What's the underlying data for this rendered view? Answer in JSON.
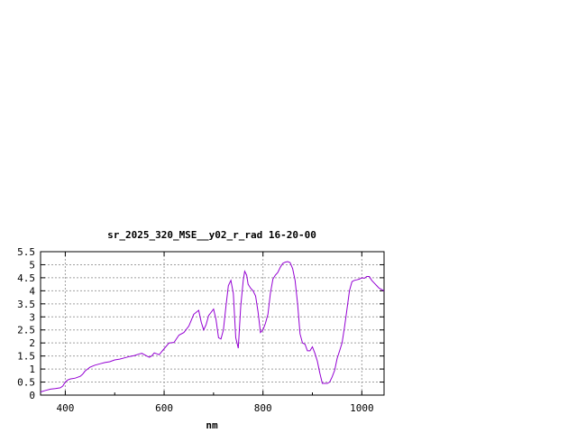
{
  "chart_data": {
    "type": "line",
    "title": "sr_2025_320_MSE__y02_r_rad 16-20-00",
    "xlabel": "nm",
    "ylabel": "",
    "xlim": [
      350,
      1045
    ],
    "ylim": [
      0,
      5.5
    ],
    "x_ticks": [
      400,
      600,
      800,
      1000
    ],
    "y_ticks": [
      0,
      0.5,
      1,
      1.5,
      2,
      2.5,
      3,
      3.5,
      4,
      4.5,
      5,
      5.5
    ],
    "y_tick_labels": [
      "0",
      "0.5",
      "1",
      "1.5",
      "2",
      "2.5",
      "3",
      "3.5",
      "4",
      "4.5",
      "5",
      "5.5"
    ],
    "grid": true,
    "line_color": "#9400d3",
    "series": [
      {
        "x": [
          350,
          360,
          370,
          380,
          390,
          395,
          400,
          405,
          410,
          420,
          430,
          435,
          440,
          445,
          450,
          460,
          470,
          480,
          490,
          500,
          510,
          520,
          530,
          540,
          550,
          555,
          560,
          570,
          575,
          580,
          590,
          600,
          610,
          620,
          630,
          640,
          650,
          660,
          670,
          675,
          680,
          685,
          690,
          700,
          705,
          710,
          715,
          720,
          725,
          730,
          735,
          740,
          745,
          750,
          755,
          760,
          763,
          767,
          770,
          775,
          780,
          785,
          790,
          795,
          800,
          805,
          810,
          815,
          820,
          825,
          830,
          835,
          840,
          845,
          850,
          855,
          860,
          865,
          870,
          875,
          880,
          885,
          890,
          895,
          900,
          905,
          910,
          915,
          920,
          925,
          930,
          935,
          940,
          945,
          950,
          955,
          960,
          965,
          970,
          975,
          980,
          985,
          990,
          995,
          1000,
          1005,
          1010,
          1015,
          1020,
          1025,
          1030,
          1035,
          1040,
          1045
        ],
        "y": [
          0.12,
          0.18,
          0.23,
          0.25,
          0.28,
          0.35,
          0.5,
          0.58,
          0.62,
          0.65,
          0.72,
          0.8,
          0.92,
          1.0,
          1.07,
          1.15,
          1.2,
          1.25,
          1.28,
          1.35,
          1.38,
          1.43,
          1.48,
          1.52,
          1.58,
          1.6,
          1.55,
          1.45,
          1.5,
          1.62,
          1.55,
          1.78,
          2.0,
          2.02,
          2.3,
          2.4,
          2.65,
          3.1,
          3.25,
          2.8,
          2.5,
          2.7,
          3.05,
          3.3,
          2.9,
          2.2,
          2.15,
          2.5,
          3.4,
          4.2,
          4.4,
          3.9,
          2.2,
          1.8,
          3.4,
          4.4,
          4.75,
          4.6,
          4.25,
          4.1,
          4.0,
          3.8,
          3.2,
          2.4,
          2.5,
          2.75,
          3.1,
          3.9,
          4.45,
          4.6,
          4.7,
          4.9,
          5.05,
          5.1,
          5.12,
          5.08,
          4.85,
          4.4,
          3.5,
          2.35,
          2.0,
          1.95,
          1.7,
          1.7,
          1.85,
          1.6,
          1.3,
          0.85,
          0.45,
          0.45,
          0.45,
          0.5,
          0.7,
          0.95,
          1.4,
          1.7,
          2.0,
          2.6,
          3.3,
          4.0,
          4.35,
          4.4,
          4.42,
          4.45,
          4.5,
          4.48,
          4.55,
          4.55,
          4.4,
          4.3,
          4.2,
          4.1,
          4.05,
          4.0
        ]
      }
    ]
  }
}
